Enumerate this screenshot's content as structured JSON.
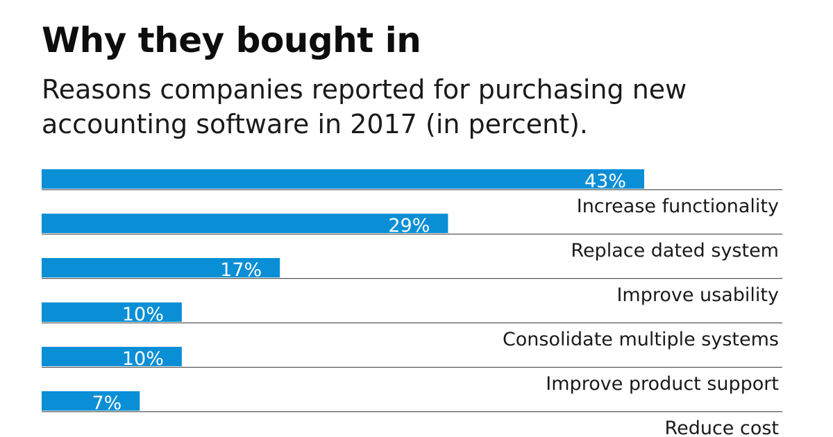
{
  "header": {
    "title": "Why they bought in",
    "subtitle": "Reasons companies reported for purchasing new accounting software in 2017 (in percent)."
  },
  "colors": {
    "bar": "#0a8fd6",
    "bar_label": "#ffffff",
    "category_label": "#1a1a1a",
    "rule": "#555555"
  },
  "chart_data": {
    "type": "bar",
    "orientation": "horizontal",
    "title": "Why they bought in",
    "subtitle": "Reasons companies reported for purchasing new accounting software in 2017 (in percent).",
    "categories": [
      "Increase functionality",
      "Replace dated system",
      "Improve usability",
      "Consolidate multiple systems",
      "Improve product support",
      "Reduce cost"
    ],
    "values": [
      43,
      29,
      17,
      10,
      10,
      7
    ],
    "value_labels": [
      "43%",
      "29%",
      "17%",
      "10%",
      "10%",
      "7%"
    ],
    "xlim": [
      0,
      50
    ],
    "grid": false,
    "legend": "none"
  }
}
